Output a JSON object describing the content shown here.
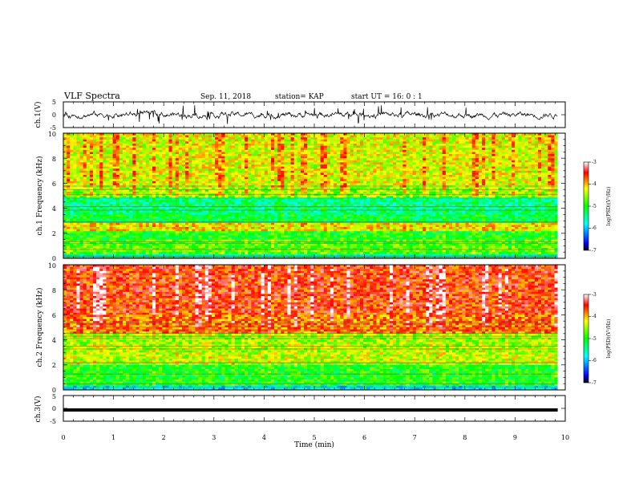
{
  "header": {
    "title": "VLF Spectra",
    "date": "Sep. 11, 2018",
    "station": "station= KAP",
    "start_ut": "start UT =  16: 0 : 1"
  },
  "chart_data": [
    {
      "type": "line",
      "panel": "ch1-waveform",
      "ylabel": "ch.1(V)",
      "ylim": [
        -5,
        5
      ],
      "yticks": [
        "5",
        "0",
        "-5"
      ],
      "xlim": [
        0,
        10
      ],
      "trace_end_min": 9.85,
      "noise_envelope_V": [
        -1.5,
        1.5
      ],
      "trace_color": "#000000"
    },
    {
      "type": "heatmap",
      "panel": "ch1-spectrogram",
      "ylabel": "ch.1 Frequency (kHz)",
      "ylim": [
        0,
        10
      ],
      "yticks": [
        "0",
        "2",
        "4",
        "6",
        "8",
        "10"
      ],
      "xlim": [
        0,
        10
      ],
      "data_end_min": 9.85,
      "colorbar": {
        "label": "log(PSD)(V²/Hz)",
        "range": [
          -7,
          -3
        ],
        "ticks": [
          "-3",
          "-4",
          "-5",
          "-6",
          "-7"
        ]
      },
      "bands_khz": [
        {
          "from": 0.0,
          "to": 0.4,
          "level": -5.5
        },
        {
          "from": 0.4,
          "to": 1.5,
          "level": -4.8
        },
        {
          "from": 1.5,
          "to": 2.2,
          "level": -5.0
        },
        {
          "from": 2.2,
          "to": 2.8,
          "level": -4.2
        },
        {
          "from": 2.8,
          "to": 3.5,
          "level": -5.2
        },
        {
          "from": 3.5,
          "to": 4.8,
          "level": -5.4
        },
        {
          "from": 4.8,
          "to": 5.6,
          "level": -4.6
        },
        {
          "from": 5.6,
          "to": 10.0,
          "level": -4.3
        }
      ]
    },
    {
      "type": "heatmap",
      "panel": "ch2-spectrogram",
      "ylabel": "ch.2 Frequency (kHz)",
      "ylim": [
        0,
        10
      ],
      "yticks": [
        "0",
        "2",
        "4",
        "6",
        "8",
        "10"
      ],
      "xlim": [
        0,
        10
      ],
      "data_end_min": 9.85,
      "colorbar": {
        "label": "log(PSD)(V²/Hz)",
        "range": [
          -7,
          -3
        ],
        "ticks": [
          "-3",
          "-4",
          "-5",
          "-6",
          "-7"
        ]
      },
      "bands_khz": [
        {
          "from": 0.0,
          "to": 0.3,
          "level": -5.8
        },
        {
          "from": 0.3,
          "to": 2.0,
          "level": -5.0
        },
        {
          "from": 2.0,
          "to": 3.0,
          "level": -4.4
        },
        {
          "from": 3.0,
          "to": 4.5,
          "level": -4.5
        },
        {
          "from": 4.5,
          "to": 6.0,
          "level": -3.8
        },
        {
          "from": 6.0,
          "to": 10.0,
          "level": -3.6
        }
      ]
    },
    {
      "type": "line",
      "panel": "ch3-waveform",
      "ylabel": "ch.3(V)",
      "ylim": [
        -5,
        5
      ],
      "yticks": [
        "5",
        "0",
        "-5"
      ],
      "xlim": [
        0,
        10
      ],
      "trace_end_min": 9.85,
      "constant_value_V": 0,
      "trace_color": "#000000"
    }
  ],
  "x_axis": {
    "label": "Time (min)",
    "ticks": [
      "0",
      "1",
      "2",
      "3",
      "4",
      "5",
      "6",
      "7",
      "8",
      "9",
      "10"
    ]
  }
}
